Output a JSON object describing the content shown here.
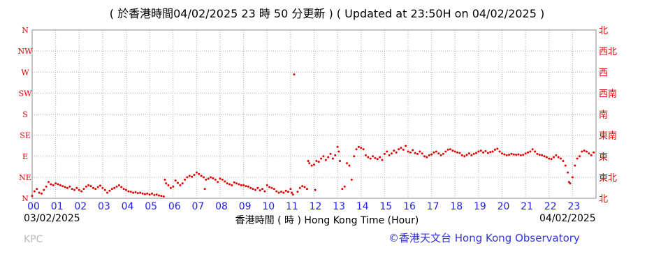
{
  "title": "( 於香港時間04/02/2025 23 時 50 分更新 ) ( Updated at 23:50H on 04/02/2025 )",
  "date_start": "03/02/2025",
  "date_end": "04/02/2025",
  "x_axis_title": "香港時間 ( 時 )  Hong Kong Time (Hour)",
  "station": "KPC",
  "copyright": "©香港天文台 Hong Kong Observatory",
  "colors": {
    "data": "#dd0000",
    "grid": "#aaaaaa",
    "left_labels": "#dd0000",
    "right_labels": "#dd0000",
    "hour_labels": "#2222ee",
    "copyright": "#3333dd"
  },
  "chart_data": {
    "type": "scatter",
    "x_unit": "hour",
    "xlim": [
      0,
      24
    ],
    "x_ticks": [
      "00",
      "01",
      "02",
      "03",
      "04",
      "05",
      "06",
      "07",
      "08",
      "09",
      "10",
      "11",
      "12",
      "13",
      "14",
      "15",
      "16",
      "17",
      "18",
      "19",
      "20",
      "21",
      "22",
      "23"
    ],
    "y_ticks_left": [
      "N",
      "NE",
      "E",
      "SE",
      "S",
      "SW",
      "W",
      "NW",
      "N"
    ],
    "y_ticks_right": [
      "北",
      "東北",
      "東",
      "東南",
      "南",
      "西南",
      "西",
      "西北",
      "北"
    ],
    "y_unit": "degrees from north",
    "ylim": [
      0,
      360
    ],
    "grid": true,
    "series": [
      {
        "points": [
          [
            0.0,
            5
          ],
          [
            0.1,
            15
          ],
          [
            0.2,
            20
          ],
          [
            0.3,
            12
          ],
          [
            0.4,
            10
          ],
          [
            0.5,
            18
          ],
          [
            0.6,
            25
          ],
          [
            0.7,
            35
          ],
          [
            0.8,
            30
          ],
          [
            0.9,
            28
          ],
          [
            1.0,
            32
          ],
          [
            1.1,
            30
          ],
          [
            1.2,
            28
          ],
          [
            1.3,
            26
          ],
          [
            1.4,
            24
          ],
          [
            1.5,
            22
          ],
          [
            1.6,
            25
          ],
          [
            1.7,
            20
          ],
          [
            1.8,
            18
          ],
          [
            1.9,
            22
          ],
          [
            2.0,
            18
          ],
          [
            2.1,
            15
          ],
          [
            2.2,
            20
          ],
          [
            2.3,
            25
          ],
          [
            2.4,
            28
          ],
          [
            2.5,
            26
          ],
          [
            2.6,
            22
          ],
          [
            2.7,
            20
          ],
          [
            2.8,
            24
          ],
          [
            2.9,
            27
          ],
          [
            3.0,
            22
          ],
          [
            3.1,
            18
          ],
          [
            3.2,
            12
          ],
          [
            3.3,
            16
          ],
          [
            3.4,
            20
          ],
          [
            3.5,
            22
          ],
          [
            3.6,
            25
          ],
          [
            3.7,
            28
          ],
          [
            3.8,
            24
          ],
          [
            3.9,
            20
          ],
          [
            4.0,
            18
          ],
          [
            4.1,
            15
          ],
          [
            4.2,
            14
          ],
          [
            4.3,
            12
          ],
          [
            4.4,
            13
          ],
          [
            4.5,
            11
          ],
          [
            4.6,
            12
          ],
          [
            4.7,
            10
          ],
          [
            4.8,
            9
          ],
          [
            4.9,
            10
          ],
          [
            5.0,
            8
          ],
          [
            5.1,
            10
          ],
          [
            5.2,
            7
          ],
          [
            5.3,
            8
          ],
          [
            5.4,
            6
          ],
          [
            5.5,
            5
          ],
          [
            5.6,
            4
          ],
          [
            5.65,
            40
          ],
          [
            5.7,
            32
          ],
          [
            5.8,
            28
          ],
          [
            5.9,
            22
          ],
          [
            6.0,
            25
          ],
          [
            6.1,
            38
          ],
          [
            6.2,
            33
          ],
          [
            6.3,
            28
          ],
          [
            6.4,
            32
          ],
          [
            6.5,
            40
          ],
          [
            6.6,
            45
          ],
          [
            6.7,
            48
          ],
          [
            6.8,
            46
          ],
          [
            6.9,
            50
          ],
          [
            7.0,
            55
          ],
          [
            7.1,
            52
          ],
          [
            7.2,
            48
          ],
          [
            7.3,
            45
          ],
          [
            7.35,
            20
          ],
          [
            7.4,
            40
          ],
          [
            7.5,
            42
          ],
          [
            7.6,
            45
          ],
          [
            7.7,
            43
          ],
          [
            7.8,
            40
          ],
          [
            7.9,
            35
          ],
          [
            8.0,
            42
          ],
          [
            8.1,
            40
          ],
          [
            8.2,
            36
          ],
          [
            8.3,
            32
          ],
          [
            8.4,
            30
          ],
          [
            8.5,
            28
          ],
          [
            8.6,
            34
          ],
          [
            8.7,
            32
          ],
          [
            8.8,
            30
          ],
          [
            8.9,
            28
          ],
          [
            9.0,
            28
          ],
          [
            9.1,
            26
          ],
          [
            9.2,
            25
          ],
          [
            9.3,
            22
          ],
          [
            9.4,
            20
          ],
          [
            9.5,
            18
          ],
          [
            9.6,
            22
          ],
          [
            9.7,
            17
          ],
          [
            9.8,
            20
          ],
          [
            9.9,
            15
          ],
          [
            10.0,
            28
          ],
          [
            10.1,
            24
          ],
          [
            10.2,
            22
          ],
          [
            10.3,
            20
          ],
          [
            10.4,
            15
          ],
          [
            10.5,
            12
          ],
          [
            10.6,
            14
          ],
          [
            10.7,
            12
          ],
          [
            10.8,
            16
          ],
          [
            10.9,
            14
          ],
          [
            11.0,
            20
          ],
          [
            11.05,
            12
          ],
          [
            11.1,
            8
          ],
          [
            11.15,
            265
          ],
          [
            11.3,
            14
          ],
          [
            11.4,
            22
          ],
          [
            11.5,
            26
          ],
          [
            11.6,
            24
          ],
          [
            11.7,
            20
          ],
          [
            11.75,
            80
          ],
          [
            11.8,
            75
          ],
          [
            11.9,
            70
          ],
          [
            12.0,
            72
          ],
          [
            12.05,
            18
          ],
          [
            12.1,
            80
          ],
          [
            12.2,
            78
          ],
          [
            12.3,
            85
          ],
          [
            12.4,
            90
          ],
          [
            12.5,
            82
          ],
          [
            12.6,
            88
          ],
          [
            12.7,
            95
          ],
          [
            12.8,
            85
          ],
          [
            12.9,
            92
          ],
          [
            13.0,
            110
          ],
          [
            13.05,
            100
          ],
          [
            13.1,
            80
          ],
          [
            13.2,
            20
          ],
          [
            13.3,
            25
          ],
          [
            13.4,
            75
          ],
          [
            13.5,
            70
          ],
          [
            13.6,
            40
          ],
          [
            13.7,
            90
          ],
          [
            13.8,
            105
          ],
          [
            13.9,
            110
          ],
          [
            14.0,
            108
          ],
          [
            14.1,
            105
          ],
          [
            14.2,
            92
          ],
          [
            14.3,
            88
          ],
          [
            14.4,
            85
          ],
          [
            14.5,
            90
          ],
          [
            14.6,
            86
          ],
          [
            14.7,
            84
          ],
          [
            14.8,
            88
          ],
          [
            14.9,
            82
          ],
          [
            15.0,
            95
          ],
          [
            15.1,
            100
          ],
          [
            15.2,
            92
          ],
          [
            15.3,
            96
          ],
          [
            15.4,
            102
          ],
          [
            15.5,
            98
          ],
          [
            15.6,
            105
          ],
          [
            15.7,
            108
          ],
          [
            15.8,
            104
          ],
          [
            15.9,
            112
          ],
          [
            16.0,
            100
          ],
          [
            16.1,
            98
          ],
          [
            16.2,
            103
          ],
          [
            16.3,
            97
          ],
          [
            16.4,
            95
          ],
          [
            16.5,
            100
          ],
          [
            16.6,
            96
          ],
          [
            16.7,
            90
          ],
          [
            16.8,
            88
          ],
          [
            16.9,
            92
          ],
          [
            17.0,
            94
          ],
          [
            17.1,
            98
          ],
          [
            17.2,
            100
          ],
          [
            17.3,
            96
          ],
          [
            17.4,
            92
          ],
          [
            17.5,
            95
          ],
          [
            17.6,
            100
          ],
          [
            17.7,
            104
          ],
          [
            17.8,
            105
          ],
          [
            17.9,
            102
          ],
          [
            18.0,
            100
          ],
          [
            18.1,
            98
          ],
          [
            18.2,
            97
          ],
          [
            18.3,
            92
          ],
          [
            18.4,
            90
          ],
          [
            18.5,
            93
          ],
          [
            18.6,
            96
          ],
          [
            18.7,
            92
          ],
          [
            18.8,
            95
          ],
          [
            18.9,
            97
          ],
          [
            19.0,
            100
          ],
          [
            19.1,
            102
          ],
          [
            19.2,
            98
          ],
          [
            19.3,
            101
          ],
          [
            19.4,
            97
          ],
          [
            19.5,
            99
          ],
          [
            19.6,
            100
          ],
          [
            19.7,
            104
          ],
          [
            19.8,
            106
          ],
          [
            19.9,
            100
          ],
          [
            20.0,
            96
          ],
          [
            20.1,
            94
          ],
          [
            20.2,
            92
          ],
          [
            20.3,
            93
          ],
          [
            20.4,
            95
          ],
          [
            20.5,
            94
          ],
          [
            20.6,
            93
          ],
          [
            20.7,
            94
          ],
          [
            20.8,
            92
          ],
          [
            20.9,
            93
          ],
          [
            21.0,
            96
          ],
          [
            21.1,
            98
          ],
          [
            21.2,
            100
          ],
          [
            21.3,
            105
          ],
          [
            21.4,
            100
          ],
          [
            21.5,
            95
          ],
          [
            21.6,
            93
          ],
          [
            21.7,
            92
          ],
          [
            21.8,
            90
          ],
          [
            21.9,
            88
          ],
          [
            22.0,
            85
          ],
          [
            22.1,
            84
          ],
          [
            22.2,
            88
          ],
          [
            22.3,
            92
          ],
          [
            22.4,
            88
          ],
          [
            22.5,
            85
          ],
          [
            22.6,
            80
          ],
          [
            22.7,
            70
          ],
          [
            22.8,
            55
          ],
          [
            22.85,
            35
          ],
          [
            22.9,
            32
          ],
          [
            23.0,
            45
          ],
          [
            23.1,
            70
          ],
          [
            23.2,
            85
          ],
          [
            23.3,
            90
          ],
          [
            23.4,
            100
          ],
          [
            23.5,
            102
          ],
          [
            23.6,
            100
          ],
          [
            23.7,
            96
          ],
          [
            23.8,
            92
          ],
          [
            23.9,
            98
          ]
        ]
      }
    ]
  }
}
